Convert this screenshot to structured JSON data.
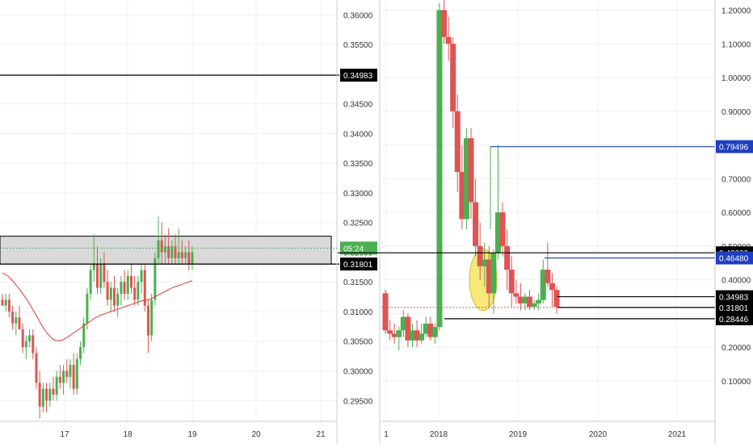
{
  "colors": {
    "up": "#4caf50",
    "down": "#e05353",
    "ma": "#e53935",
    "hline": "#000000",
    "blue_line": "#1e3fbf",
    "zone_fill": "#d9d9d9",
    "grid": "#eef0f3",
    "axis_text": "#333333",
    "label_dark_bg": "#000000",
    "label_blue_bg": "#1e3fbf",
    "label_green_bg": "#4caf50",
    "highlight_ellipse": "#f5e663"
  },
  "chart_data": [
    {
      "name": "left-intraday",
      "type": "candlestick",
      "x_ticks": [
        "17",
        "18",
        "19",
        "20",
        "21"
      ],
      "y_ticks": [
        "0.36000",
        "0.35500",
        "0.35000",
        "0.34500",
        "0.34000",
        "0.33500",
        "0.33000",
        "0.32500",
        "0.32000",
        "0.31500",
        "0.31000",
        "0.30500",
        "0.30000",
        "0.29500"
      ],
      "ylim": [
        0.2915,
        0.3625
      ],
      "levels": [
        {
          "value": 0.34983,
          "label": "0.34983",
          "style": "black"
        },
        {
          "value": 0.31801,
          "label": "0.31801",
          "style": "black"
        }
      ],
      "zone": {
        "from": 0.31801,
        "to": 0.3227
      },
      "countdown": {
        "value": 0.3207,
        "label": "05:24"
      },
      "candles": [
        [
          0.312,
          0.313,
          0.311,
          0.311
        ],
        [
          0.311,
          0.313,
          0.31,
          0.312
        ],
        [
          0.312,
          0.313,
          0.309,
          0.31
        ],
        [
          0.31,
          0.311,
          0.307,
          0.308
        ],
        [
          0.308,
          0.31,
          0.306,
          0.309
        ],
        [
          0.309,
          0.311,
          0.307,
          0.307
        ],
        [
          0.307,
          0.308,
          0.303,
          0.304
        ],
        [
          0.304,
          0.306,
          0.302,
          0.305
        ],
        [
          0.305,
          0.307,
          0.304,
          0.306
        ],
        [
          0.306,
          0.307,
          0.302,
          0.303
        ],
        [
          0.303,
          0.304,
          0.297,
          0.298
        ],
        [
          0.298,
          0.3,
          0.292,
          0.294
        ],
        [
          0.294,
          0.298,
          0.293,
          0.297
        ],
        [
          0.297,
          0.298,
          0.293,
          0.295
        ],
        [
          0.295,
          0.298,
          0.294,
          0.297
        ],
        [
          0.297,
          0.299,
          0.295,
          0.296
        ],
        [
          0.296,
          0.3,
          0.295,
          0.299
        ],
        [
          0.299,
          0.301,
          0.297,
          0.298
        ],
        [
          0.298,
          0.301,
          0.296,
          0.3
        ],
        [
          0.3,
          0.302,
          0.298,
          0.299
        ],
        [
          0.299,
          0.302,
          0.297,
          0.301
        ],
        [
          0.301,
          0.303,
          0.296,
          0.297
        ],
        [
          0.297,
          0.303,
          0.296,
          0.302
        ],
        [
          0.302,
          0.305,
          0.301,
          0.304
        ],
        [
          0.304,
          0.309,
          0.303,
          0.308
        ],
        [
          0.308,
          0.314,
          0.307,
          0.313
        ],
        [
          0.313,
          0.318,
          0.312,
          0.317
        ],
        [
          0.317,
          0.323,
          0.315,
          0.318
        ],
        [
          0.318,
          0.321,
          0.313,
          0.314
        ],
        [
          0.314,
          0.319,
          0.313,
          0.318
        ],
        [
          0.318,
          0.32,
          0.314,
          0.315
        ],
        [
          0.315,
          0.317,
          0.311,
          0.312
        ],
        [
          0.312,
          0.315,
          0.31,
          0.314
        ],
        [
          0.314,
          0.316,
          0.31,
          0.311
        ],
        [
          0.311,
          0.314,
          0.309,
          0.313
        ],
        [
          0.313,
          0.316,
          0.311,
          0.315
        ],
        [
          0.315,
          0.317,
          0.312,
          0.313
        ],
        [
          0.313,
          0.317,
          0.312,
          0.316
        ],
        [
          0.316,
          0.318,
          0.313,
          0.314
        ],
        [
          0.314,
          0.316,
          0.311,
          0.312
        ],
        [
          0.312,
          0.316,
          0.311,
          0.315
        ],
        [
          0.315,
          0.318,
          0.313,
          0.317
        ],
        [
          0.317,
          0.318,
          0.31,
          0.311
        ],
        [
          0.311,
          0.312,
          0.303,
          0.306
        ],
        [
          0.306,
          0.313,
          0.305,
          0.312
        ],
        [
          0.312,
          0.32,
          0.311,
          0.319
        ],
        [
          0.319,
          0.326,
          0.318,
          0.322
        ],
        [
          0.322,
          0.325,
          0.318,
          0.32
        ],
        [
          0.32,
          0.323,
          0.318,
          0.321
        ],
        [
          0.321,
          0.324,
          0.318,
          0.319
        ],
        [
          0.319,
          0.322,
          0.318,
          0.321
        ],
        [
          0.321,
          0.323,
          0.318,
          0.319
        ],
        [
          0.319,
          0.324,
          0.318,
          0.32
        ],
        [
          0.32,
          0.322,
          0.318,
          0.319
        ],
        [
          0.319,
          0.321,
          0.318,
          0.32
        ],
        [
          0.32,
          0.322,
          0.317,
          0.318
        ],
        [
          0.318,
          0.321,
          0.317,
          0.32
        ]
      ],
      "ma": [
        0.3165,
        0.3162,
        0.3158,
        0.3152,
        0.3145,
        0.3138,
        0.313,
        0.3122,
        0.3113,
        0.3103,
        0.3093,
        0.3083,
        0.3073,
        0.3065,
        0.3058,
        0.3053,
        0.3051,
        0.3051,
        0.3053,
        0.3056,
        0.306,
        0.3064,
        0.3068,
        0.3072,
        0.3076,
        0.308,
        0.3084,
        0.3088,
        0.3091,
        0.3094,
        0.3096,
        0.3098,
        0.31,
        0.3102,
        0.3104,
        0.3106,
        0.3108,
        0.311,
        0.3112,
        0.3114,
        0.3116,
        0.3118,
        0.3119,
        0.312,
        0.3122,
        0.3125,
        0.3128,
        0.3131,
        0.3134,
        0.3137,
        0.314,
        0.3142,
        0.3144,
        0.3146,
        0.3148,
        0.315,
        0.3152
      ]
    },
    {
      "name": "right-weekly",
      "type": "candlestick",
      "x_ticks": [
        "1",
        "2018",
        "2019",
        "2020",
        "2021"
      ],
      "y_ticks": [
        "1.20000",
        "1.10000",
        "1.00000",
        "0.90000",
        "0.80000",
        "0.70000",
        "0.60000",
        "0.50000",
        "0.40000",
        "0.30000",
        "0.20000",
        "0.10000"
      ],
      "ylim": [
        -0.02,
        1.23
      ],
      "levels": [
        {
          "value": 0.79496,
          "label": "0.79496",
          "style": "blue"
        },
        {
          "value": 0.48,
          "label": "0.48000",
          "style": "black"
        },
        {
          "value": 0.4648,
          "label": "0.46480",
          "style": "blue"
        },
        {
          "value": 0.34983,
          "label": "0.34983",
          "style": "black"
        },
        {
          "value": 0.31801,
          "label": "0.31801",
          "style": "black"
        },
        {
          "value": 0.28446,
          "label": "0.28446",
          "style": "black"
        }
      ],
      "candles": [
        [
          0.36,
          0.37,
          0.24,
          0.25
        ],
        [
          0.25,
          0.28,
          0.22,
          0.24
        ],
        [
          0.24,
          0.27,
          0.21,
          0.23
        ],
        [
          0.23,
          0.26,
          0.19,
          0.25
        ],
        [
          0.25,
          0.31,
          0.23,
          0.29
        ],
        [
          0.29,
          0.3,
          0.2,
          0.22
        ],
        [
          0.22,
          0.27,
          0.2,
          0.25
        ],
        [
          0.25,
          0.28,
          0.2,
          0.22
        ],
        [
          0.22,
          0.27,
          0.21,
          0.24
        ],
        [
          0.24,
          0.29,
          0.23,
          0.27
        ],
        [
          0.27,
          0.29,
          0.22,
          0.23
        ],
        [
          0.23,
          0.27,
          0.21,
          0.26
        ],
        [
          0.26,
          1.22,
          0.25,
          1.2
        ],
        [
          1.2,
          1.25,
          1.1,
          1.12
        ],
        [
          1.12,
          1.18,
          1.05,
          1.1
        ],
        [
          1.1,
          1.12,
          0.85,
          0.9
        ],
        [
          0.9,
          0.95,
          0.66,
          0.72
        ],
        [
          0.72,
          0.8,
          0.55,
          0.58
        ],
        [
          0.58,
          0.85,
          0.55,
          0.82
        ],
        [
          0.82,
          0.85,
          0.58,
          0.63
        ],
        [
          0.63,
          0.7,
          0.47,
          0.5
        ],
        [
          0.5,
          0.57,
          0.4,
          0.44
        ],
        [
          0.44,
          0.51,
          0.38,
          0.46
        ],
        [
          0.46,
          0.5,
          0.32,
          0.36
        ],
        [
          0.36,
          0.49,
          0.3,
          0.48
        ],
        [
          0.48,
          0.8,
          0.46,
          0.6
        ],
        [
          0.6,
          0.63,
          0.47,
          0.5
        ],
        [
          0.5,
          0.55,
          0.37,
          0.43
        ],
        [
          0.43,
          0.47,
          0.32,
          0.36
        ],
        [
          0.36,
          0.4,
          0.33,
          0.35
        ],
        [
          0.35,
          0.39,
          0.31,
          0.33
        ],
        [
          0.33,
          0.36,
          0.31,
          0.35
        ],
        [
          0.35,
          0.37,
          0.31,
          0.32
        ],
        [
          0.32,
          0.34,
          0.31,
          0.33
        ],
        [
          0.33,
          0.36,
          0.31,
          0.34
        ],
        [
          0.34,
          0.46,
          0.33,
          0.43
        ],
        [
          0.43,
          0.51,
          0.38,
          0.39
        ],
        [
          0.39,
          0.42,
          0.32,
          0.37
        ],
        [
          0.37,
          0.38,
          0.3,
          0.32
        ]
      ]
    }
  ]
}
